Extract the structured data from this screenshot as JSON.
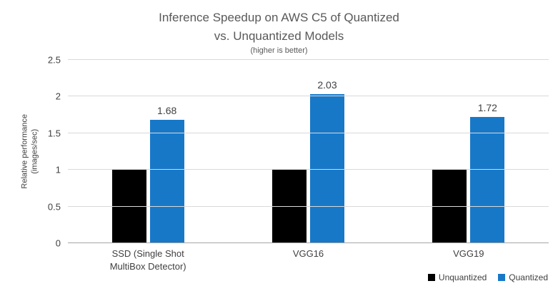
{
  "title": {
    "line1": "Inference Speedup on AWS C5 of Quantized",
    "line2": "vs. Unquantized Models",
    "subtitle": "(higher is better)"
  },
  "y_axis": {
    "line1": "Relative performance",
    "line2": "(images/sec)"
  },
  "chart_data": {
    "type": "bar",
    "title": "Inference Speedup on AWS C5 of Quantized vs. Unquantized Models",
    "subtitle": "(higher is better)",
    "ylabel": "Relative performance (images/sec)",
    "categories": [
      "SSD (Single Shot\nMultiBox Detector)",
      "VGG16",
      "VGG19"
    ],
    "series": [
      {
        "name": "Unquantized",
        "color": "#000000",
        "values": [
          1,
          1,
          1
        ],
        "labels": [
          null,
          null,
          null
        ]
      },
      {
        "name": "Quantized",
        "color": "#1878C8",
        "values": [
          1.68,
          2.03,
          1.72
        ],
        "labels": [
          "1.68",
          "2.03",
          "1.72"
        ]
      }
    ],
    "ylim": [
      0,
      2.5
    ],
    "yticks": [
      0,
      0.5,
      1,
      1.5,
      2,
      2.5
    ],
    "ytick_labels": [
      "0",
      "0.5",
      "1",
      "1.5",
      "2",
      "2.5"
    ],
    "grid": true,
    "legend_position": "bottom-right",
    "colors": {
      "grid": "#D9D9D9",
      "axis": "#A6A6A6",
      "text": "#404040",
      "title": "#595959",
      "background": "#FFFFFF"
    }
  }
}
